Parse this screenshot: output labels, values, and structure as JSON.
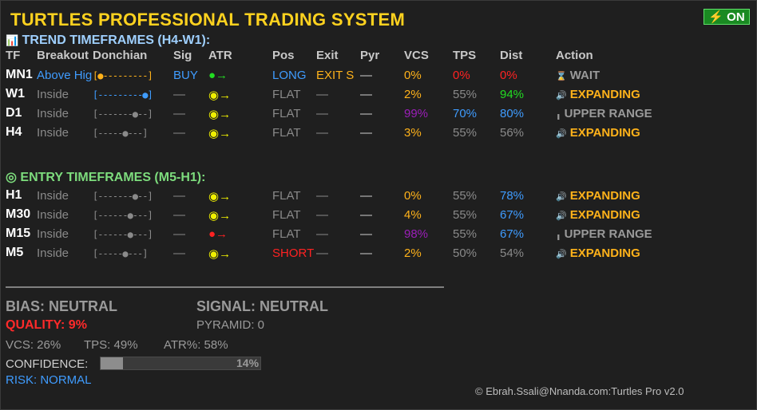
{
  "title": "TURTLES PROFESSIONAL TRADING SYSTEM",
  "on_button": {
    "icon": "⚡",
    "label": "ON"
  },
  "trend_section": {
    "icon": "📊",
    "title": "TREND TIMEFRAMES (H4-W1):"
  },
  "entry_section": {
    "icon": "◎",
    "title": "ENTRY TIMEFRAMES (M5-H1):"
  },
  "headers": [
    "TF",
    "Breakout",
    "Donchian",
    "Sig",
    "ATR",
    "Pos",
    "Exit",
    "Pyr",
    "VCS",
    "TPS",
    "Dist",
    "Action"
  ],
  "trend_rows": [
    {
      "tf": "MN1",
      "breakout": "Above Hig",
      "donchian": "[●---------]",
      "sig": "BUY",
      "atr": "●→",
      "pos": "LONG",
      "exit": "EXIT S",
      "pyr": "—",
      "vcs": "0%",
      "tps": "0%",
      "dist": "0%",
      "action_icon": "⌛",
      "action": "WAIT",
      "colors": {
        "breakout": "#3f9cff",
        "donchian": "#ffb21a",
        "sig": "#3f9cff",
        "atr": "#22dd22",
        "pos": "#3f9cff",
        "exit": "#ffb21a",
        "vcs": "#ffb21a",
        "tps": "#ff2222",
        "dist": "#ff2222",
        "action": "#9a9a9a"
      }
    },
    {
      "tf": "W1",
      "breakout": "Inside",
      "donchian": "[---------●]",
      "sig": "—",
      "atr": "◉→",
      "pos": "FLAT",
      "exit": "—",
      "pyr": "—",
      "vcs": "2%",
      "tps": "55%",
      "dist": "94%",
      "action_icon": "🔊",
      "action": "EXPANDING",
      "colors": {
        "breakout": "#8a8a8a",
        "donchian": "#3f9cff",
        "sig": "#8a8a8a",
        "atr": "#f0f000",
        "pos": "#8a8a8a",
        "exit": "#8a8a8a",
        "vcs": "#ffb21a",
        "tps": "#8a8a8a",
        "dist": "#22dd22",
        "action": "#ffb21a"
      }
    },
    {
      "tf": "D1",
      "breakout": "Inside",
      "donchian": "[-------●--]",
      "sig": "—",
      "atr": "◉→",
      "pos": "FLAT",
      "exit": "—",
      "pyr": "—",
      "vcs": "99%",
      "tps": "70%",
      "dist": "80%",
      "action_icon": "╻",
      "action": "UPPER RANGE",
      "colors": {
        "breakout": "#8a8a8a",
        "donchian": "#8a8a8a",
        "sig": "#8a8a8a",
        "atr": "#f0f000",
        "pos": "#8a8a8a",
        "exit": "#8a8a8a",
        "vcs": "#9b1fb8",
        "tps": "#3f9cff",
        "dist": "#3f9cff",
        "action": "#9a9a9a"
      }
    },
    {
      "tf": "H4",
      "breakout": "Inside",
      "donchian": "[-----●---]",
      "sig": "—",
      "atr": "◉→",
      "pos": "FLAT",
      "exit": "—",
      "pyr": "—",
      "vcs": "3%",
      "tps": "55%",
      "dist": "56%",
      "action_icon": "🔊",
      "action": "EXPANDING",
      "colors": {
        "breakout": "#8a8a8a",
        "donchian": "#8a8a8a",
        "sig": "#8a8a8a",
        "atr": "#f0f000",
        "pos": "#8a8a8a",
        "exit": "#8a8a8a",
        "vcs": "#ffb21a",
        "tps": "#8a8a8a",
        "dist": "#8a8a8a",
        "action": "#ffb21a"
      }
    }
  ],
  "entry_rows": [
    {
      "tf": "H1",
      "breakout": "Inside",
      "donchian": "[-------●--]",
      "sig": "—",
      "atr": "◉→",
      "pos": "FLAT",
      "exit": "—",
      "pyr": "—",
      "vcs": "0%",
      "tps": "55%",
      "dist": "78%",
      "action_icon": "🔊",
      "action": "EXPANDING",
      "colors": {
        "breakout": "#8a8a8a",
        "donchian": "#8a8a8a",
        "sig": "#8a8a8a",
        "atr": "#f0f000",
        "pos": "#8a8a8a",
        "exit": "#8a8a8a",
        "vcs": "#ffb21a",
        "tps": "#8a8a8a",
        "dist": "#3f9cff",
        "action": "#ffb21a"
      }
    },
    {
      "tf": "M30",
      "breakout": "Inside",
      "donchian": "[------●---]",
      "sig": "—",
      "atr": "◉→",
      "pos": "FLAT",
      "exit": "—",
      "pyr": "—",
      "vcs": "4%",
      "tps": "55%",
      "dist": "67%",
      "action_icon": "🔊",
      "action": "EXPANDING",
      "colors": {
        "breakout": "#8a8a8a",
        "donchian": "#8a8a8a",
        "sig": "#8a8a8a",
        "atr": "#f0f000",
        "pos": "#8a8a8a",
        "exit": "#8a8a8a",
        "vcs": "#ffb21a",
        "tps": "#8a8a8a",
        "dist": "#3f9cff",
        "action": "#ffb21a"
      }
    },
    {
      "tf": "M15",
      "breakout": "Inside",
      "donchian": "[------●---]",
      "sig": "—",
      "atr": "●→",
      "pos": "FLAT",
      "exit": "—",
      "pyr": "—",
      "vcs": "98%",
      "tps": "55%",
      "dist": "67%",
      "action_icon": "╻",
      "action": "UPPER RANGE",
      "colors": {
        "breakout": "#8a8a8a",
        "donchian": "#8a8a8a",
        "sig": "#8a8a8a",
        "atr": "#ff2222",
        "pos": "#8a8a8a",
        "exit": "#8a8a8a",
        "vcs": "#9b1fb8",
        "tps": "#8a8a8a",
        "dist": "#3f9cff",
        "action": "#9a9a9a"
      }
    },
    {
      "tf": "M5",
      "breakout": "Inside",
      "donchian": "[-----●---]",
      "sig": "—",
      "atr": "◉→",
      "pos": "SHORT",
      "exit": "—",
      "pyr": "—",
      "vcs": "2%",
      "tps": "50%",
      "dist": "54%",
      "action_icon": "🔊",
      "action": "EXPANDING",
      "colors": {
        "breakout": "#8a8a8a",
        "donchian": "#8a8a8a",
        "sig": "#8a8a8a",
        "atr": "#f0f000",
        "pos": "#ff2222",
        "exit": "#8a8a8a",
        "vcs": "#ffb21a",
        "tps": "#8a8a8a",
        "dist": "#8a8a8a",
        "action": "#ffb21a"
      }
    }
  ],
  "summary": {
    "bias": "BIAS: NEUTRAL",
    "signal": "SIGNAL: NEUTRAL",
    "quality": "QUALITY: 9%",
    "pyramid": "PYRAMID: 0",
    "vcs": "VCS: 26%",
    "tps": "TPS: 49%",
    "atr": "ATR%: 58%",
    "confidence_label": "CONFIDENCE:",
    "confidence_pct": "14%",
    "confidence_value": 0.14,
    "risk": "RISK: NORMAL"
  },
  "copyright": "© Ebrah.Ssali@Nnanda.com:Turtles Pro v2.0",
  "colors": {
    "title": "#ffd21f",
    "trend_section": "#9fd0ff",
    "entry_section": "#7ddc7d",
    "quality": "#ff2a2a",
    "risk": "#3f9cff",
    "panel_bg": "#1f1f1f"
  }
}
